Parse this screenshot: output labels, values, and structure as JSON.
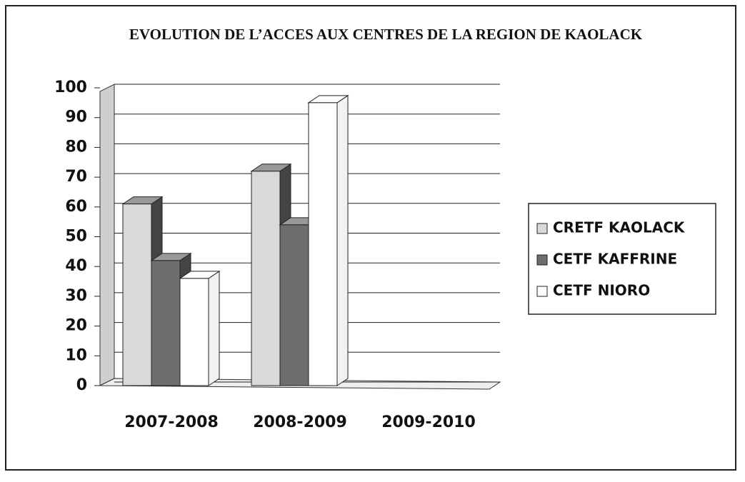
{
  "chart_data": {
    "type": "bar",
    "title": "EVOLUTION DE L’ACCES AUX CENTRES DE LA REGION DE KAOLACK",
    "categories": [
      "2007-2008",
      "2008-2009",
      "2009-2010"
    ],
    "series": [
      {
        "name": "CRETF KAOLACK",
        "color": "#d9d9d9",
        "values": [
          61,
          72,
          null
        ]
      },
      {
        "name": "CETF KAFFRINE",
        "color": "#6e6e6e",
        "values": [
          42,
          54,
          null
        ]
      },
      {
        "name": "CETF NIORO",
        "color": "#ffffff",
        "values": [
          36,
          95,
          null
        ]
      }
    ],
    "ylim": [
      0,
      100
    ],
    "yticks": [
      0,
      10,
      20,
      30,
      40,
      50,
      60,
      70,
      80,
      90,
      100
    ],
    "grid": true,
    "legend": "right"
  }
}
